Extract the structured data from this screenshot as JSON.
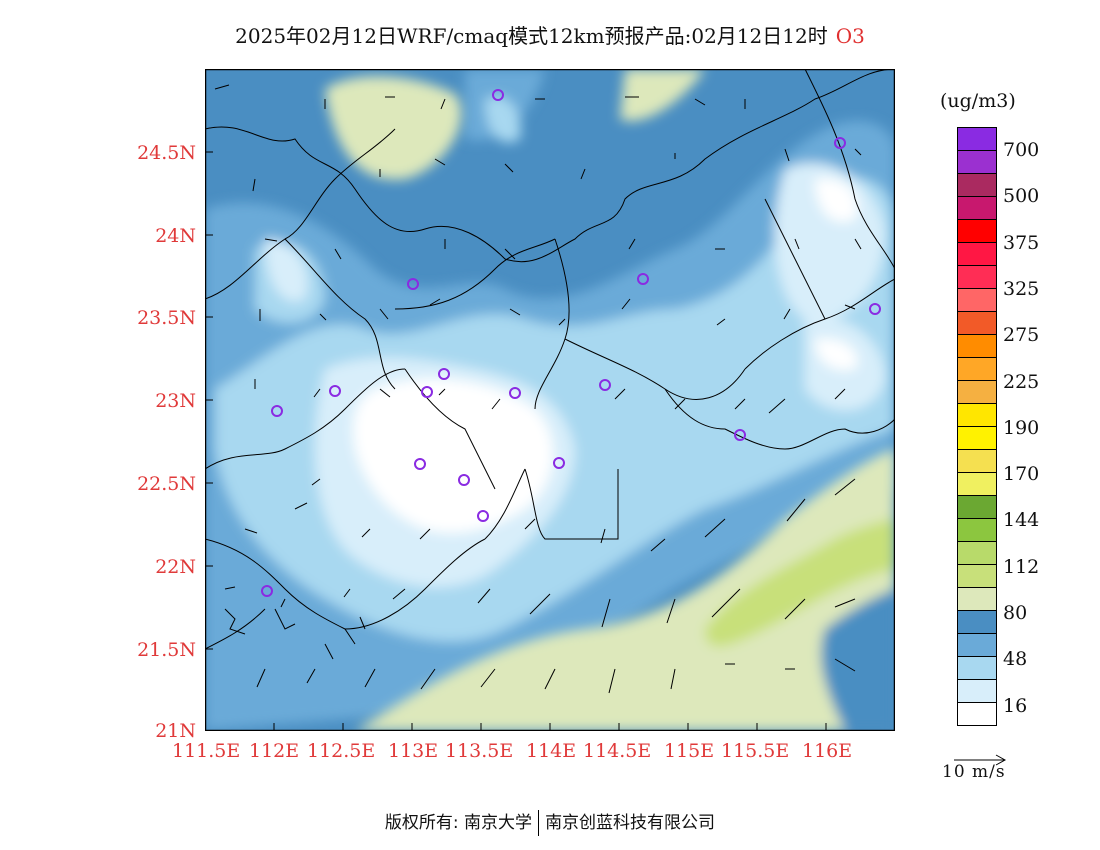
{
  "title": {
    "main": "2025年02月12日WRF/cmaq模式12km预报产品:02月12日12时",
    "species": "O3"
  },
  "axes": {
    "lat_ticks": [
      "24.5N",
      "24N",
      "23.5N",
      "23N",
      "22.5N",
      "22N",
      "21.5N",
      "21N"
    ],
    "lon_ticks": [
      "111.5E",
      "112E",
      "112.5E",
      "113E",
      "113.5E",
      "114E",
      "114.5E",
      "115E",
      "115.5E",
      "116E"
    ]
  },
  "legend": {
    "unit": "(ug/m3)",
    "labels": [
      "700",
      "500",
      "375",
      "325",
      "275",
      "225",
      "190",
      "170",
      "144",
      "112",
      "80",
      "48",
      "16"
    ],
    "colors": [
      "#8a2be2",
      "#9b30d0",
      "#aa2a60",
      "#c8186e",
      "#ff0000",
      "#ff1744",
      "#ff2d55",
      "#ff6666",
      "#f25a28",
      "#ff8c00",
      "#ffa726",
      "#f5b041",
      "#ffe600",
      "#fff200",
      "#f5e050",
      "#f0f060",
      "#6ba832",
      "#8cc63f",
      "#b8da6a",
      "#c8e07a",
      "#dde8bb",
      "#4a8ec2",
      "#6aaad8",
      "#a8d8f0",
      "#d8eefa",
      "#ffffff"
    ]
  },
  "wind_scale": {
    "label": "10 m/s"
  },
  "footer": {
    "copyright": "版权所有: 南京大学",
    "company": "南京创蓝科技有限公司"
  }
}
